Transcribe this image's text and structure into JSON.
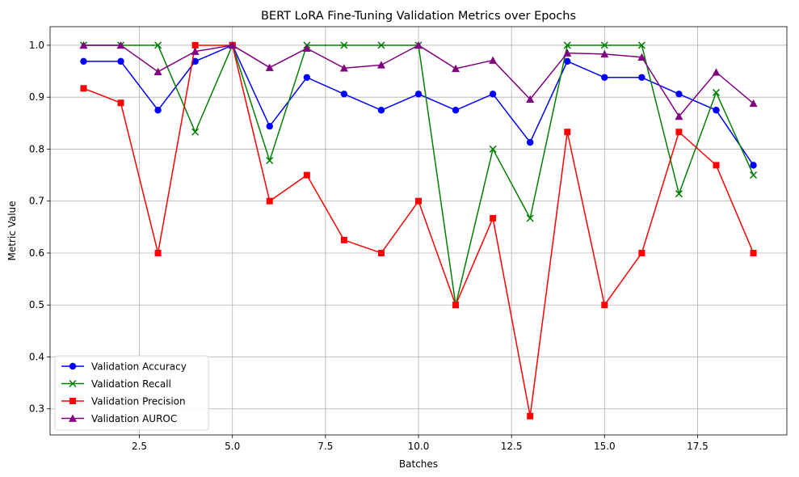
{
  "chart_data": {
    "type": "line",
    "title": "BERT LoRA Fine-Tuning Validation Metrics over Epochs",
    "xlabel": "Batches",
    "ylabel": "Metric Value",
    "xlim": [
      0.1,
      19.9
    ],
    "ylim": [
      0.2498,
      1.0357
    ],
    "x_ticks": [
      2.5,
      5.0,
      7.5,
      10.0,
      12.5,
      15.0,
      17.5
    ],
    "x_tick_labels": [
      "2.5",
      "5.0",
      "7.5",
      "10.0",
      "12.5",
      "15.0",
      "17.5"
    ],
    "y_ticks": [
      0.3,
      0.4,
      0.5,
      0.6,
      0.7,
      0.8,
      0.9,
      1.0
    ],
    "y_tick_labels": [
      "0.3",
      "0.4",
      "0.5",
      "0.6",
      "0.7",
      "0.8",
      "0.9",
      "1.0"
    ],
    "grid": true,
    "legend_position": "lower-left",
    "x": [
      1,
      2,
      3,
      4,
      5,
      6,
      7,
      8,
      9,
      10,
      11,
      12,
      13,
      14,
      15,
      16,
      17,
      18,
      19
    ],
    "series": [
      {
        "name": "Validation Accuracy",
        "color": "#0000ff",
        "marker": "circle",
        "values": [
          0.969,
          0.969,
          0.875,
          0.969,
          1.0,
          0.844,
          0.938,
          0.906,
          0.875,
          0.906,
          0.875,
          0.906,
          0.813,
          0.969,
          0.938,
          0.938,
          0.906,
          0.875,
          0.769
        ]
      },
      {
        "name": "Validation Recall",
        "color": "#008000",
        "marker": "x",
        "values": [
          1.0,
          1.0,
          1.0,
          0.833,
          1.0,
          0.778,
          1.0,
          1.0,
          1.0,
          1.0,
          0.5,
          0.8,
          0.667,
          1.0,
          1.0,
          1.0,
          0.714,
          0.909,
          0.75
        ]
      },
      {
        "name": "Validation Precision",
        "color": "#ff0000",
        "marker": "square",
        "values": [
          0.917,
          0.889,
          0.6,
          1.0,
          1.0,
          0.7,
          0.75,
          0.625,
          0.6,
          0.7,
          0.5,
          0.667,
          0.286,
          0.833,
          0.5,
          0.6,
          0.833,
          0.769,
          0.6
        ]
      },
      {
        "name": "Validation AUROC",
        "color": "#800080",
        "marker": "triangle",
        "values": [
          1.0,
          1.0,
          0.949,
          0.988,
          1.0,
          0.957,
          0.994,
          0.956,
          0.962,
          1.0,
          0.955,
          0.971,
          0.896,
          0.985,
          0.983,
          0.977,
          0.863,
          0.948,
          0.888
        ]
      }
    ]
  }
}
